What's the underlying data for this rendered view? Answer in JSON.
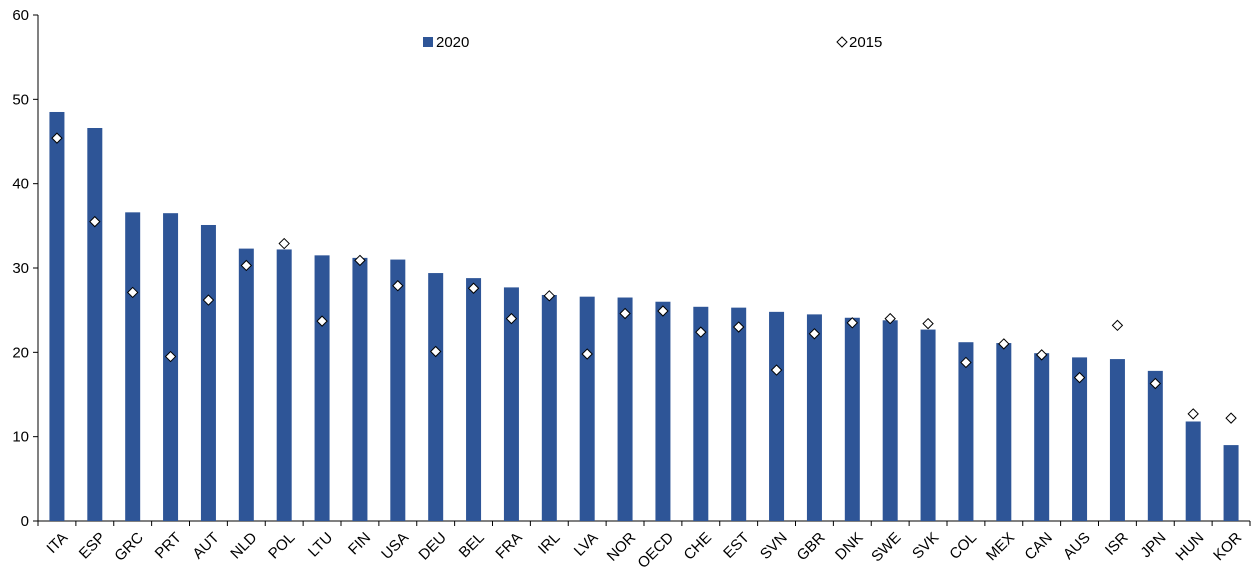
{
  "chart_data": {
    "type": "bar",
    "title": "",
    "xlabel": "",
    "ylabel": "",
    "ylim": [
      0,
      60
    ],
    "yticks": [
      0,
      10,
      20,
      30,
      40,
      50,
      60
    ],
    "grid": false,
    "legend_position": "top",
    "categories": [
      "ITA",
      "ESP",
      "GRC",
      "PRT",
      "AUT",
      "NLD",
      "POL",
      "LTU",
      "FIN",
      "USA",
      "DEU",
      "BEL",
      "FRA",
      "IRL",
      "LVA",
      "NOR",
      "OECD",
      "CHE",
      "EST",
      "SVN",
      "GBR",
      "DNK",
      "SWE",
      "SVK",
      "COL",
      "MEX",
      "CAN",
      "AUS",
      "ISR",
      "JPN",
      "HUN",
      "KOR"
    ],
    "series": [
      {
        "name": "2020",
        "kind": "bar",
        "color": "#2e5597",
        "values": [
          48.5,
          46.6,
          36.6,
          36.5,
          35.1,
          32.3,
          32.2,
          31.5,
          31.2,
          31.0,
          29.4,
          28.8,
          27.7,
          26.8,
          26.6,
          26.5,
          26.0,
          25.4,
          25.3,
          24.8,
          24.5,
          24.1,
          23.8,
          22.7,
          21.2,
          21.1,
          19.9,
          19.4,
          19.2,
          17.8,
          11.8,
          9.0
        ]
      },
      {
        "name": "2015",
        "kind": "marker",
        "marker": "diamond",
        "color": "#ffffff",
        "values": [
          45.4,
          35.5,
          27.1,
          19.5,
          26.2,
          30.3,
          32.9,
          23.7,
          30.9,
          27.9,
          20.1,
          27.6,
          24.0,
          26.7,
          19.8,
          24.6,
          24.9,
          22.4,
          23.0,
          17.9,
          22.2,
          23.5,
          24.0,
          23.4,
          18.8,
          21.0,
          19.7,
          17.0,
          23.2,
          16.3,
          12.7,
          12.2
        ]
      }
    ]
  }
}
